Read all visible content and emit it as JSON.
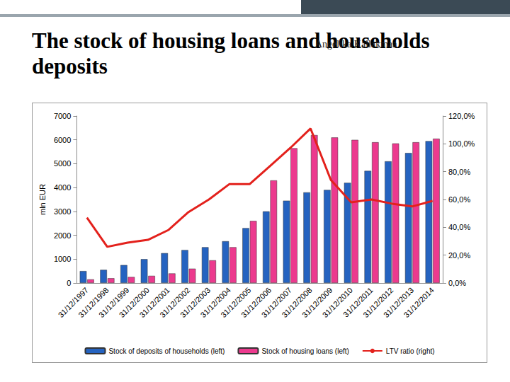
{
  "chart_data": {
    "type": "bar",
    "title": "The stock of housing loans and households deposits",
    "annotations": [
      "Angelika Kallakmaa"
    ],
    "ylabel": "mln EUR",
    "categories": [
      "31/12/1997",
      "31/12/1998",
      "31/12/1999",
      "31/12/2000",
      "31/12/2001",
      "31/12/2002",
      "31/12/2003",
      "31/12/2004",
      "31/12/2005",
      "31/12/2006",
      "31/12/2007",
      "31/12/2008",
      "31/12/2009",
      "31/12/2010",
      "31/12/2011",
      "31/12/2012",
      "31/12/2013",
      "31/12/2014"
    ],
    "series": [
      {
        "name": "Stock of deposits of households (left)",
        "type": "bar",
        "color": "#2563c0",
        "values": [
          500,
          550,
          750,
          1000,
          1250,
          1380,
          1500,
          1750,
          2300,
          3000,
          3450,
          3800,
          3900,
          4200,
          4700,
          5100,
          5450,
          5950
        ]
      },
      {
        "name": "Stock of housing loans (left)",
        "type": "bar",
        "color": "#ec3a8e",
        "values": [
          150,
          200,
          250,
          300,
          400,
          600,
          950,
          1500,
          2600,
          4300,
          5650,
          6200,
          6100,
          6000,
          5900,
          5850,
          5900,
          6050
        ]
      },
      {
        "name": "LTV ratio (right)",
        "type": "line",
        "color": "#e3211c",
        "axis": "y2",
        "values": [
          47,
          26,
          29,
          31,
          38,
          51,
          60,
          71,
          71,
          84,
          97,
          111,
          74,
          58,
          60,
          57,
          55,
          59
        ]
      }
    ],
    "ylim": [
      0,
      7000
    ],
    "yticks": [
      0,
      1000,
      2000,
      3000,
      4000,
      5000,
      6000,
      7000
    ],
    "y2lim": [
      0,
      120
    ],
    "y2ticks": [
      {
        "value": 0,
        "label": "0,0%"
      },
      {
        "value": 20,
        "label": "20,0%"
      },
      {
        "value": 40,
        "label": "40,0%"
      },
      {
        "value": 60,
        "label": "60,0%"
      },
      {
        "value": 80,
        "label": "80,0%"
      },
      {
        "value": 100,
        "label": "100,0%"
      },
      {
        "value": 120,
        "label": "120,0%"
      }
    ],
    "grid": false,
    "legend": "bottom"
  }
}
